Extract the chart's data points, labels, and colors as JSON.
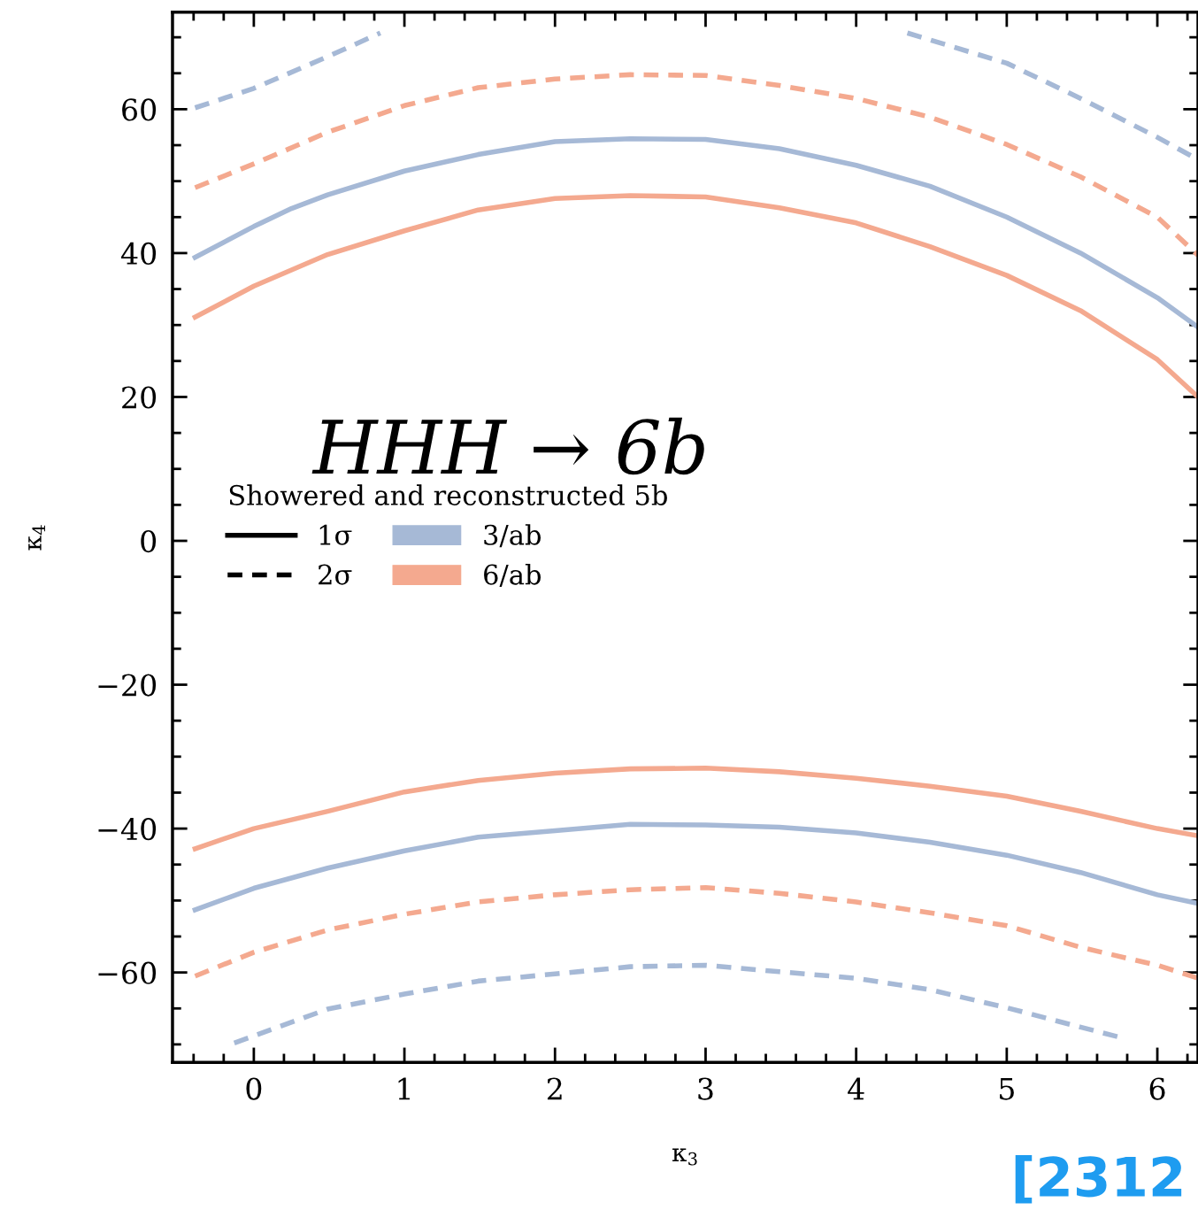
{
  "chart_data": {
    "type": "line",
    "xlabel": "κ$_{3}$",
    "ylabel": "κ$_{4}$",
    "legend_title": "Showered and reconstructed 5b",
    "annotations": [
      "HHH → 6b",
      "1σ",
      "2σ",
      "[2312"
    ],
    "xlim": [
      -0.54,
      6.27
    ],
    "ylim": [
      -72.5,
      73.5
    ],
    "xticks": [
      0,
      1,
      2,
      3,
      4,
      5,
      6
    ],
    "yticks": [
      -60,
      -40,
      -20,
      0,
      20,
      40,
      60
    ],
    "grid": false,
    "legend": "left",
    "series": [
      {
        "name": "3/ab",
        "color": "#a6b9d6",
        "line_style": "solid",
        "x": [
          -0.39,
          0,
          0.25,
          0.49,
          1,
          1.49,
          2,
          2.5,
          3,
          3.49,
          4,
          4.49,
          5,
          5.49,
          6,
          6.27
        ],
        "values": [
          39.4,
          43.7,
          46.2,
          48.1,
          51.4,
          53.7,
          55.5,
          55.9,
          55.8,
          54.5,
          52.2,
          49.3,
          45.0,
          40.0,
          33.8,
          29.7
        ]
      },
      {
        "name": "6/ab",
        "color": "#f4a98f",
        "line_style": "solid",
        "x": [
          -0.39,
          0,
          0.49,
          1,
          1.49,
          2,
          2.5,
          3,
          3.49,
          4,
          4.49,
          5,
          5.49,
          6,
          6.27
        ],
        "values": [
          31.1,
          35.4,
          39.8,
          43.1,
          46.0,
          47.6,
          48.0,
          47.8,
          46.3,
          44.2,
          40.9,
          36.9,
          32.0,
          25.2,
          20.0
        ]
      },
      {
        "color": "#a6b9d6",
        "line_style": "dashed",
        "x": [
          -0.39,
          0,
          0.49,
          0.84
        ],
        "values": [
          60.2,
          62.9,
          67.3,
          70.6
        ]
      },
      {
        "color": "#a6b9d6",
        "line_style": "dashed",
        "x": [
          4.34,
          5,
          5.49,
          6,
          6.27
        ],
        "values": [
          70.6,
          66.4,
          61.5,
          56.1,
          53.0
        ]
      },
      {
        "color": "#f4a98f",
        "line_style": "dashed",
        "x": [
          -0.39,
          0,
          0.49,
          1,
          1.49,
          2,
          2.5,
          3,
          3.49,
          4,
          4.49,
          5,
          5.49,
          6,
          6.27
        ],
        "values": [
          49.1,
          52.4,
          56.8,
          60.5,
          63.0,
          64.2,
          64.8,
          64.7,
          63.3,
          61.5,
          58.9,
          55.1,
          50.6,
          45.0,
          39.7
        ]
      },
      {
        "color": "#f4a98f",
        "line_style": "solid",
        "x": [
          -0.39,
          0,
          0.49,
          1,
          1.49,
          2,
          2.5,
          3,
          3.49,
          4,
          4.49,
          5,
          5.49,
          6,
          6.27
        ],
        "values": [
          -42.8,
          -40.0,
          -37.6,
          -34.9,
          -33.3,
          -32.3,
          -31.7,
          -31.6,
          -32.1,
          -33.0,
          -34.1,
          -35.5,
          -37.6,
          -40.0,
          -41.0
        ]
      },
      {
        "color": "#a6b9d6",
        "line_style": "solid",
        "x": [
          -0.39,
          0,
          0.49,
          1,
          1.49,
          2,
          2.5,
          3,
          3.49,
          4,
          4.49,
          5,
          5.49,
          6,
          6.27
        ],
        "values": [
          -51.3,
          -48.3,
          -45.5,
          -43.1,
          -41.2,
          -40.3,
          -39.4,
          -39.5,
          -39.8,
          -40.6,
          -41.9,
          -43.7,
          -46.1,
          -49.2,
          -50.4
        ]
      },
      {
        "color": "#f4a98f",
        "line_style": "dashed",
        "x": [
          -0.39,
          0,
          0.49,
          1,
          1.49,
          2,
          2.5,
          3,
          3.49,
          4,
          4.49,
          5,
          5.49,
          6,
          6.27
        ],
        "values": [
          -60.5,
          -57.2,
          -54.1,
          -51.9,
          -50.2,
          -49.2,
          -48.5,
          -48.2,
          -49.0,
          -50.2,
          -51.7,
          -53.5,
          -56.5,
          -59.0,
          -60.8
        ]
      },
      {
        "color": "#a6b9d6",
        "line_style": "dashed",
        "x": [
          -0.13,
          0.49,
          1,
          1.49,
          2,
          2.5,
          3,
          3.49,
          4,
          4.49,
          5,
          5.49,
          5.75
        ],
        "values": [
          -69.8,
          -65.1,
          -63.0,
          -61.2,
          -60.2,
          -59.2,
          -59.0,
          -59.9,
          -60.8,
          -62.4,
          -64.9,
          -67.6,
          -69.0
        ]
      }
    ]
  }
}
